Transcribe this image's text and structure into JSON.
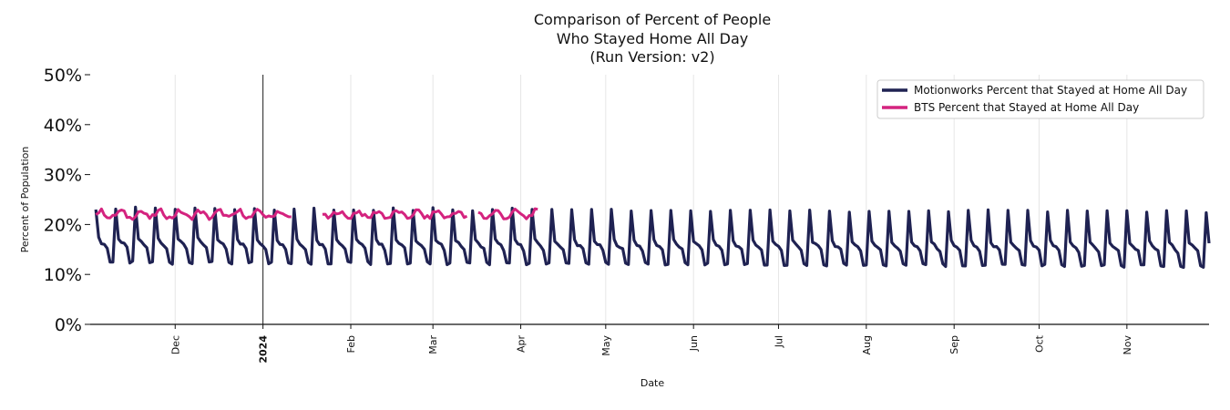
{
  "chart_data": {
    "type": "line",
    "title_lines": [
      "Comparison of Percent of People",
      "Who Stayed Home All Day",
      "(Run Version: v2)"
    ],
    "xlabel": "Date",
    "ylabel": "Percent of Population",
    "xlim": [
      "2023-11-01",
      "2024-11-30"
    ],
    "ylim": [
      0,
      50
    ],
    "y_ticks": [
      {
        "value": 0,
        "label": "0%"
      },
      {
        "value": 10,
        "label": "10%"
      },
      {
        "value": 20,
        "label": "20%"
      },
      {
        "value": 30,
        "label": "30%"
      },
      {
        "value": 40,
        "label": "40%"
      },
      {
        "value": 50,
        "label": "50%"
      }
    ],
    "x_ticks": [
      {
        "date": "2023-12-01",
        "label": "Dec",
        "bold": false
      },
      {
        "date": "2024-01-01",
        "label": "2024",
        "bold": true
      },
      {
        "date": "2024-02-01",
        "label": "Feb",
        "bold": false
      },
      {
        "date": "2024-03-01",
        "label": "Mar",
        "bold": false
      },
      {
        "date": "2024-04-01",
        "label": "Apr",
        "bold": false
      },
      {
        "date": "2024-05-01",
        "label": "May",
        "bold": false
      },
      {
        "date": "2024-06-01",
        "label": "Jun",
        "bold": false
      },
      {
        "date": "2024-07-01",
        "label": "Jul",
        "bold": false
      },
      {
        "date": "2024-08-01",
        "label": "Aug",
        "bold": false
      },
      {
        "date": "2024-09-01",
        "label": "Sep",
        "bold": false
      },
      {
        "date": "2024-10-01",
        "label": "Oct",
        "bold": false
      },
      {
        "date": "2024-11-01",
        "label": "Nov",
        "bold": false
      }
    ],
    "year_marker_date": "2024-01-01",
    "grid": "vertical",
    "legend_position": "top-right",
    "series": [
      {
        "name": "Motionworks Percent that Stayed at Home All Day",
        "color": "#1f2252",
        "start": "2023-11-03",
        "end": "2024-11-30",
        "weekly_cycle": [
          23.3,
          17.2,
          16.4,
          16.0,
          15.3,
          12.5,
          12.4
        ],
        "approx_mean": 16.8
      },
      {
        "name": "BTS Percent that Stayed at Home All Day",
        "color": "#d4237f",
        "start": "2023-11-03",
        "end": "2024-04-07",
        "approx_range": [
          20.0,
          23.5
        ],
        "approx_mean": 22.0,
        "gaps": [
          [
            "2024-01-12",
            "2024-01-21"
          ],
          [
            "2024-03-14",
            "2024-03-16"
          ]
        ]
      }
    ]
  }
}
